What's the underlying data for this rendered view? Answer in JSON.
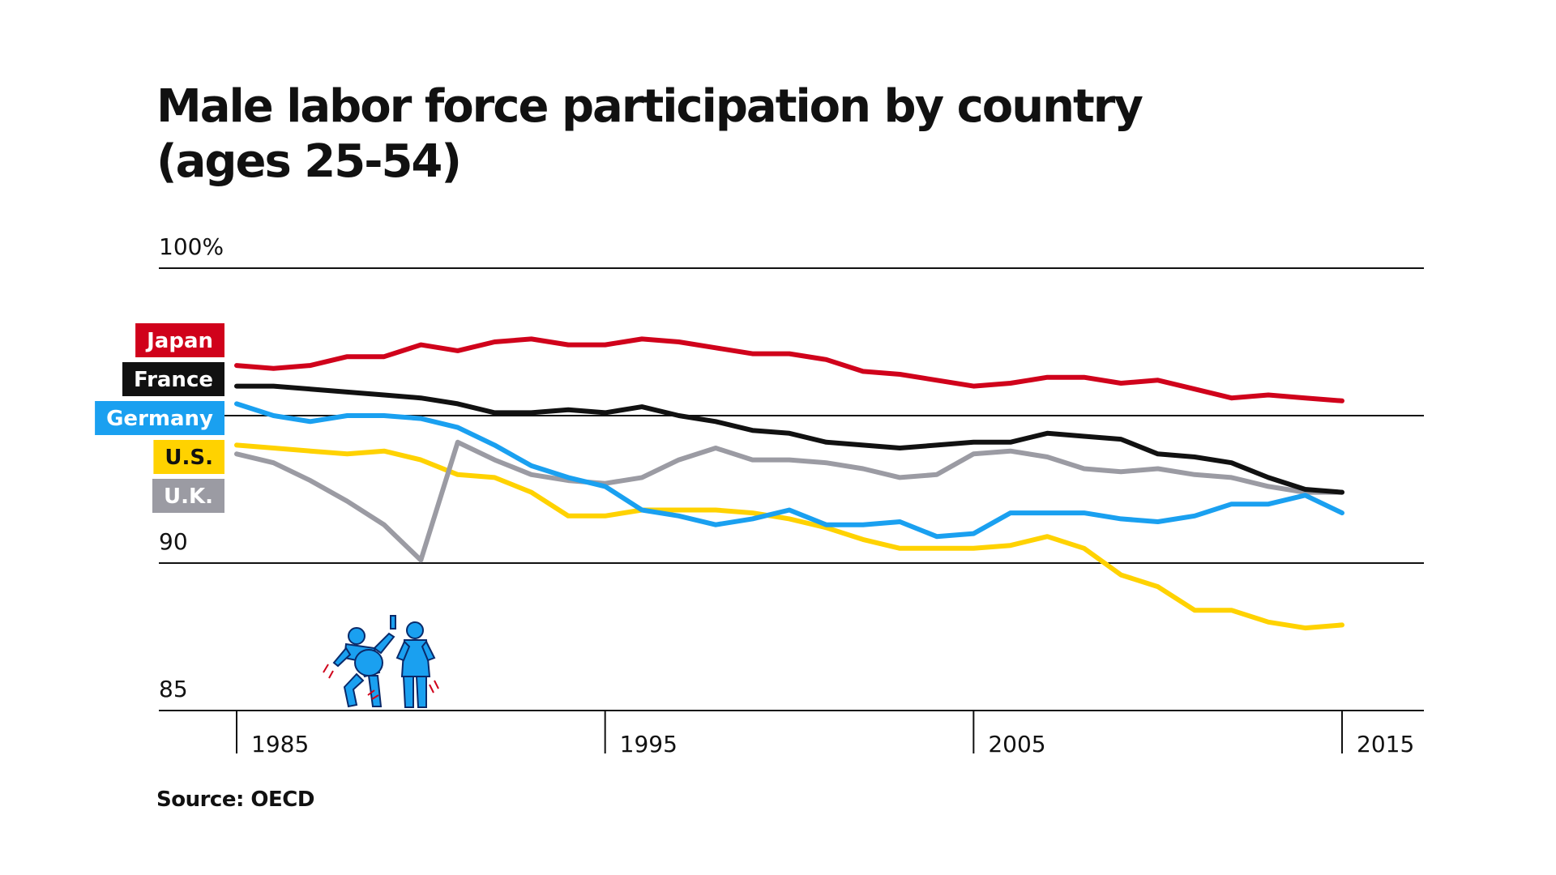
{
  "title_line1": "Male labor force participation by country",
  "title_line2": "(ages 25-54)",
  "source": "Source: OECD",
  "chart_data": {
    "type": "line",
    "title": "Male labor force participation by country (ages 25-54)",
    "ylim": [
      85,
      100
    ],
    "xlim": [
      1983,
      2017
    ],
    "y_ticks": [
      {
        "value": 100,
        "label": "100%"
      },
      {
        "value": 95,
        "label": ""
      },
      {
        "value": 90,
        "label": "90"
      },
      {
        "value": 85,
        "label": "85"
      }
    ],
    "x_ticks": [
      {
        "value": 1985,
        "label": "1985"
      },
      {
        "value": 1995,
        "label": "1995"
      },
      {
        "value": 2005,
        "label": "2005"
      },
      {
        "value": 2015,
        "label": "2015"
      }
    ],
    "grid": true,
    "legend": "left",
    "x": [
      1985,
      1986,
      1987,
      1988,
      1989,
      1990,
      1991,
      1992,
      1993,
      1994,
      1995,
      1996,
      1997,
      1998,
      1999,
      2000,
      2001,
      2002,
      2003,
      2004,
      2005,
      2006,
      2007,
      2008,
      2009,
      2010,
      2011,
      2012,
      2013,
      2014,
      2015
    ],
    "series": [
      {
        "name": "Japan",
        "color": "#d0021b",
        "text_color": "#ffffff",
        "values": [
          96.7,
          96.6,
          96.7,
          97.0,
          97.0,
          97.4,
          97.2,
          97.5,
          97.6,
          97.4,
          97.4,
          97.6,
          97.5,
          97.3,
          97.1,
          97.1,
          96.9,
          96.5,
          96.4,
          96.2,
          96.0,
          96.1,
          96.3,
          96.3,
          96.1,
          96.2,
          95.9,
          95.6,
          95.7,
          95.6,
          95.5
        ]
      },
      {
        "name": "France",
        "color": "#111111",
        "text_color": "#ffffff",
        "values": [
          96.0,
          96.0,
          95.9,
          95.8,
          95.7,
          95.6,
          95.4,
          95.1,
          95.1,
          95.2,
          95.1,
          95.3,
          95.0,
          94.8,
          94.5,
          94.4,
          94.1,
          94.0,
          93.9,
          94.0,
          94.1,
          94.1,
          94.4,
          94.3,
          94.2,
          93.7,
          93.6,
          93.4,
          92.9,
          92.5,
          92.4
        ]
      },
      {
        "name": "Germany",
        "color": "#1aa0f0",
        "text_color": "#ffffff",
        "values": [
          95.4,
          95.0,
          94.8,
          95.0,
          95.0,
          94.9,
          94.6,
          94.0,
          93.3,
          92.9,
          92.6,
          91.8,
          91.6,
          91.3,
          91.5,
          91.8,
          91.3,
          91.3,
          91.4,
          90.9,
          91.0,
          91.7,
          91.7,
          91.7,
          91.5,
          91.4,
          91.6,
          92.0,
          92.0,
          92.3,
          91.7
        ]
      },
      {
        "name": "U.S.",
        "color": "#ffd200",
        "text_color": "#111111",
        "values": [
          94.0,
          93.9,
          93.8,
          93.7,
          93.8,
          93.5,
          93.0,
          92.9,
          92.4,
          91.6,
          91.6,
          91.8,
          91.8,
          91.8,
          91.7,
          91.5,
          91.2,
          90.8,
          90.5,
          90.5,
          90.5,
          90.6,
          90.9,
          90.5,
          89.6,
          89.2,
          88.4,
          88.4,
          88.0,
          87.8,
          87.9
        ]
      },
      {
        "name": "U.K.",
        "color": "#9b9ba3",
        "text_color": "#ffffff",
        "values": [
          93.7,
          93.4,
          92.8,
          92.1,
          91.3,
          90.1,
          94.1,
          93.5,
          93.0,
          92.8,
          92.7,
          92.9,
          93.5,
          93.9,
          93.5,
          93.5,
          93.4,
          93.2,
          92.9,
          93.0,
          93.7,
          93.8,
          93.6,
          93.2,
          93.1,
          93.2,
          93.0,
          92.9,
          92.6,
          92.4,
          92.4
        ]
      }
    ]
  }
}
